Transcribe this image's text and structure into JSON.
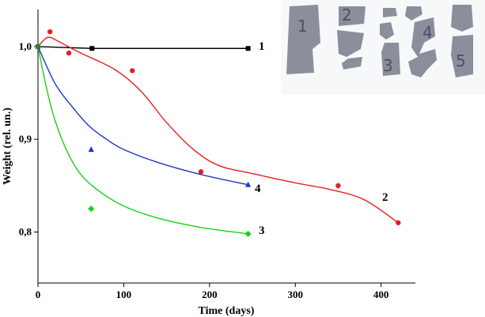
{
  "chart_data": {
    "type": "line",
    "title": "",
    "xlabel": "Time (days)",
    "ylabel": "Weight (rel. un.)",
    "xlim": [
      0,
      440
    ],
    "ylim": [
      0.745,
      1.04
    ],
    "xticks": [
      0,
      100,
      200,
      300,
      400
    ],
    "xtick_labels": [
      "0",
      "100",
      "200",
      "300",
      "400"
    ],
    "yticks": [
      0.8,
      0.9,
      1.0
    ],
    "ytick_labels": [
      "0,8",
      "0,9",
      "1,0"
    ],
    "grid": false,
    "series": [
      {
        "name": "1",
        "color": "#000000",
        "marker": "square",
        "points": [
          [
            0,
            1.0
          ],
          [
            63,
            0.998
          ],
          [
            245,
            0.998
          ]
        ],
        "curve": [
          [
            0,
            1.0
          ],
          [
            63,
            0.998
          ],
          [
            245,
            0.998
          ]
        ]
      },
      {
        "name": "2",
        "color": "#e81d1d",
        "marker": "circle",
        "points": [
          [
            0,
            1.0
          ],
          [
            14,
            1.016
          ],
          [
            36,
            0.993
          ],
          [
            110,
            0.974
          ],
          [
            190,
            0.865
          ],
          [
            350,
            0.85
          ],
          [
            420,
            0.81
          ]
        ],
        "curve": [
          [
            0,
            1.0
          ],
          [
            8,
            1.008
          ],
          [
            14,
            1.01
          ],
          [
            25,
            1.005
          ],
          [
            50,
            0.993
          ],
          [
            90,
            0.975
          ],
          [
            120,
            0.952
          ],
          [
            150,
            0.918
          ],
          [
            180,
            0.89
          ],
          [
            210,
            0.872
          ],
          [
            250,
            0.863
          ],
          [
            300,
            0.853
          ],
          [
            340,
            0.846
          ],
          [
            380,
            0.835
          ],
          [
            420,
            0.81
          ]
        ]
      },
      {
        "name": "3",
        "color": "#19d019",
        "marker": "diamond",
        "points": [
          [
            0,
            1.0
          ],
          [
            62,
            0.825
          ],
          [
            245,
            0.798
          ]
        ],
        "curve": [
          [
            0,
            1.0
          ],
          [
            10,
            0.955
          ],
          [
            20,
            0.92
          ],
          [
            35,
            0.885
          ],
          [
            50,
            0.862
          ],
          [
            70,
            0.845
          ],
          [
            100,
            0.828
          ],
          [
            140,
            0.815
          ],
          [
            190,
            0.805
          ],
          [
            245,
            0.798
          ]
        ]
      },
      {
        "name": "4",
        "color": "#1f34c8",
        "marker": "triangle",
        "points": [
          [
            0,
            1.0
          ],
          [
            62,
            0.889
          ],
          [
            245,
            0.851
          ]
        ],
        "curve": [
          [
            0,
            1.0
          ],
          [
            20,
            0.96
          ],
          [
            40,
            0.935
          ],
          [
            60,
            0.914
          ],
          [
            80,
            0.9
          ],
          [
            100,
            0.889
          ],
          [
            140,
            0.875
          ],
          [
            190,
            0.862
          ],
          [
            245,
            0.851
          ]
        ]
      }
    ],
    "inset": {
      "description": "photograph of five degraded film samples",
      "labels": [
        "1",
        "2",
        "3",
        "4",
        "5"
      ]
    }
  }
}
